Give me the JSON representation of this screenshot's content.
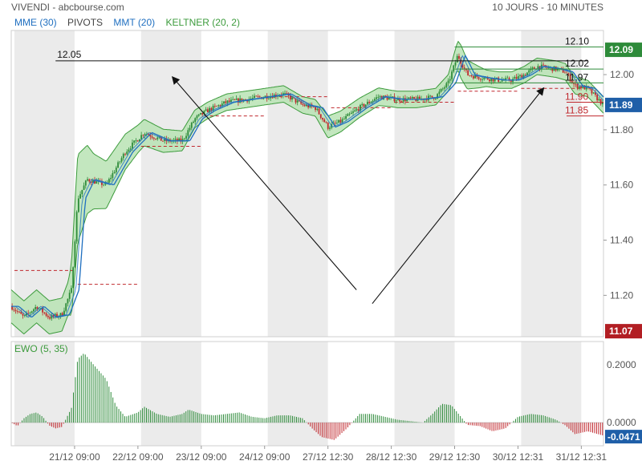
{
  "header": {
    "title": "VIVENDI - abcbourse.com",
    "period": "10 JOURS - 10 MINUTES"
  },
  "legend": [
    {
      "label": "MME (30)",
      "color": "#1f6fc0"
    },
    {
      "label": "PIVOTS",
      "color": "#444444"
    },
    {
      "label": "MMT (20)",
      "color": "#1f6fc0"
    },
    {
      "label": "KELTNER (20, 2)",
      "color": "#3c9b3c"
    }
  ],
  "colors": {
    "up": "#2e8b3a",
    "down": "#c0272d",
    "channel_fill": "#b9e3b4",
    "channel_edge": "#3c9b3c",
    "mme": "#1f6fc0",
    "mmt": "#1f6fc0",
    "pivot": "#c0272d",
    "session_shade": "#ebebeb"
  },
  "chart_data": [
    {
      "type": "candlestick",
      "title": "",
      "ylim": [
        11.05,
        12.16
      ],
      "y_ticks": [
        "12.00",
        "11.80",
        "11.60",
        "11.40",
        "11.20"
      ],
      "x_ticks": [
        "21/12 09:00",
        "22/12 09:00",
        "23/12 09:00",
        "24/12 09:00",
        "27/12 12:30",
        "28/12 12:30",
        "29/12 12:30",
        "30/12 12:31",
        "31/12 12:31"
      ],
      "price_path": [
        [
          0,
          11.16
        ],
        [
          2,
          11.12
        ],
        [
          4,
          11.16
        ],
        [
          6,
          11.12
        ],
        [
          8,
          11.13
        ],
        [
          9.5,
          11.22
        ],
        [
          10.5,
          11.55
        ],
        [
          12,
          11.62
        ],
        [
          15,
          11.6
        ],
        [
          18,
          11.72
        ],
        [
          21,
          11.79
        ],
        [
          24,
          11.76
        ],
        [
          27,
          11.76
        ],
        [
          29,
          11.84
        ],
        [
          31,
          11.87
        ],
        [
          34,
          11.9
        ],
        [
          37,
          11.91
        ],
        [
          40,
          11.92
        ],
        [
          43,
          11.93
        ],
        [
          46,
          11.89
        ],
        [
          48,
          11.88
        ],
        [
          50,
          11.81
        ],
        [
          52,
          11.83
        ],
        [
          55,
          11.88
        ],
        [
          58,
          11.92
        ],
        [
          61,
          11.91
        ],
        [
          64,
          11.91
        ],
        [
          67,
          11.92
        ],
        [
          69,
          11.97
        ],
        [
          70.5,
          12.07
        ],
        [
          72,
          12.0
        ],
        [
          74,
          11.99
        ],
        [
          77,
          11.98
        ],
        [
          79,
          11.98
        ],
        [
          81,
          12.0
        ],
        [
          83,
          12.03
        ],
        [
          86,
          12.02
        ],
        [
          87.5,
          12.01
        ],
        [
          89,
          11.96
        ],
        [
          91,
          11.95
        ],
        [
          93.5,
          11.89
        ]
      ],
      "keltner_halfwidth": [
        [
          0,
          0.06
        ],
        [
          9,
          0.06
        ],
        [
          10.5,
          0.16
        ],
        [
          13,
          0.1
        ],
        [
          20,
          0.05
        ],
        [
          30,
          0.03
        ],
        [
          48,
          0.03
        ],
        [
          50,
          0.04
        ],
        [
          60,
          0.03
        ],
        [
          69,
          0.03
        ],
        [
          71,
          0.06
        ],
        [
          75,
          0.03
        ],
        [
          93.5,
          0.03
        ]
      ],
      "pivot_levels": [
        {
          "x0": 0,
          "x1": 10,
          "y": 11.29
        },
        {
          "x0": 10,
          "x1": 20,
          "y": 11.24
        },
        {
          "x0": 20,
          "x1": 30,
          "y": 11.74
        },
        {
          "x0": 30,
          "x1": 40,
          "y": 11.85
        },
        {
          "x0": 40,
          "x1": 50,
          "y": 11.92
        },
        {
          "x0": 50,
          "x1": 60,
          "y": 11.88
        },
        {
          "x0": 60,
          "x1": 70,
          "y": 11.9
        },
        {
          "x0": 70,
          "x1": 80,
          "y": 11.94
        },
        {
          "x0": 80,
          "x1": 90,
          "y": 11.95
        },
        {
          "x0": 90,
          "x1": 93.5,
          "y": 11.9
        }
      ],
      "annotations": {
        "hline": {
          "x0": 7,
          "x1": 91,
          "y": 12.05,
          "label": "12.05"
        },
        "green_lines": [
          {
            "x0": 70,
            "x1": 93.5,
            "y": 12.1,
            "label": "12.10"
          },
          {
            "x0": 70,
            "x1": 93.5,
            "y": 12.02,
            "label": "12.02"
          },
          {
            "x0": 70,
            "x1": 93.5,
            "y": 11.97,
            "label": "11.97"
          }
        ],
        "red_lines": [
          {
            "x0": 88,
            "x1": 93.5,
            "y": 11.9,
            "label": "11.90"
          },
          {
            "x0": 88,
            "x1": 93.5,
            "y": 11.85,
            "label": "11.85"
          }
        ],
        "arrows": [
          {
            "from": [
              54.5,
              11.22
            ],
            "to": [
              25.5,
              11.99
            ]
          },
          {
            "from": [
              57,
              11.17
            ],
            "to": [
              84,
              11.95
            ]
          }
        ]
      },
      "price_labels": {
        "high": {
          "value": "12.09",
          "color": "#2e8b3a"
        },
        "last": {
          "value": "11.89",
          "color": "#1f5fa8"
        },
        "low": {
          "value": "11.07",
          "color": "#b21e23"
        }
      }
    },
    {
      "type": "bar",
      "title": "EWO (5, 35)",
      "ylim": [
        -0.08,
        0.28
      ],
      "y_ticks": [
        "0.2000",
        "0.0000"
      ],
      "last_value": "-0.0471",
      "ewo_path": [
        [
          0,
          0.0
        ],
        [
          1,
          -0.012
        ],
        [
          2,
          0.015
        ],
        [
          3,
          0.03
        ],
        [
          4,
          0.035
        ],
        [
          5,
          0.02
        ],
        [
          6,
          -0.01
        ],
        [
          7,
          -0.02
        ],
        [
          8,
          -0.015
        ],
        [
          9.5,
          0.05
        ],
        [
          10.5,
          0.22
        ],
        [
          11.5,
          0.24
        ],
        [
          13,
          0.2
        ],
        [
          15,
          0.15
        ],
        [
          16.5,
          0.06
        ],
        [
          18,
          0.02
        ],
        [
          20,
          0.035
        ],
        [
          21,
          0.055
        ],
        [
          23,
          0.03
        ],
        [
          25,
          0.02
        ],
        [
          27,
          0.03
        ],
        [
          28,
          0.045
        ],
        [
          30,
          0.03
        ],
        [
          32,
          0.025
        ],
        [
          34,
          0.03
        ],
        [
          36,
          0.035
        ],
        [
          38,
          0.02
        ],
        [
          40,
          0.015
        ],
        [
          42,
          0.025
        ],
        [
          44,
          0.025
        ],
        [
          46,
          0.015
        ],
        [
          47.5,
          -0.02
        ],
        [
          49,
          -0.05
        ],
        [
          51,
          -0.06
        ],
        [
          53,
          -0.02
        ],
        [
          55,
          0.03
        ],
        [
          57,
          0.03
        ],
        [
          59,
          0.02
        ],
        [
          61,
          0.01
        ],
        [
          63,
          0.005
        ],
        [
          65,
          0.0
        ],
        [
          66.5,
          0.03
        ],
        [
          68,
          0.065
        ],
        [
          69.5,
          0.06
        ],
        [
          71,
          0.02
        ],
        [
          72,
          -0.008
        ],
        [
          74,
          -0.012
        ],
        [
          76,
          -0.03
        ],
        [
          78,
          -0.02
        ],
        [
          80,
          0.02
        ],
        [
          82,
          0.03
        ],
        [
          84,
          0.025
        ],
        [
          86,
          0.01
        ],
        [
          87.5,
          -0.01
        ],
        [
          89,
          -0.04
        ],
        [
          91,
          -0.03
        ],
        [
          93.5,
          -0.045
        ]
      ]
    }
  ]
}
